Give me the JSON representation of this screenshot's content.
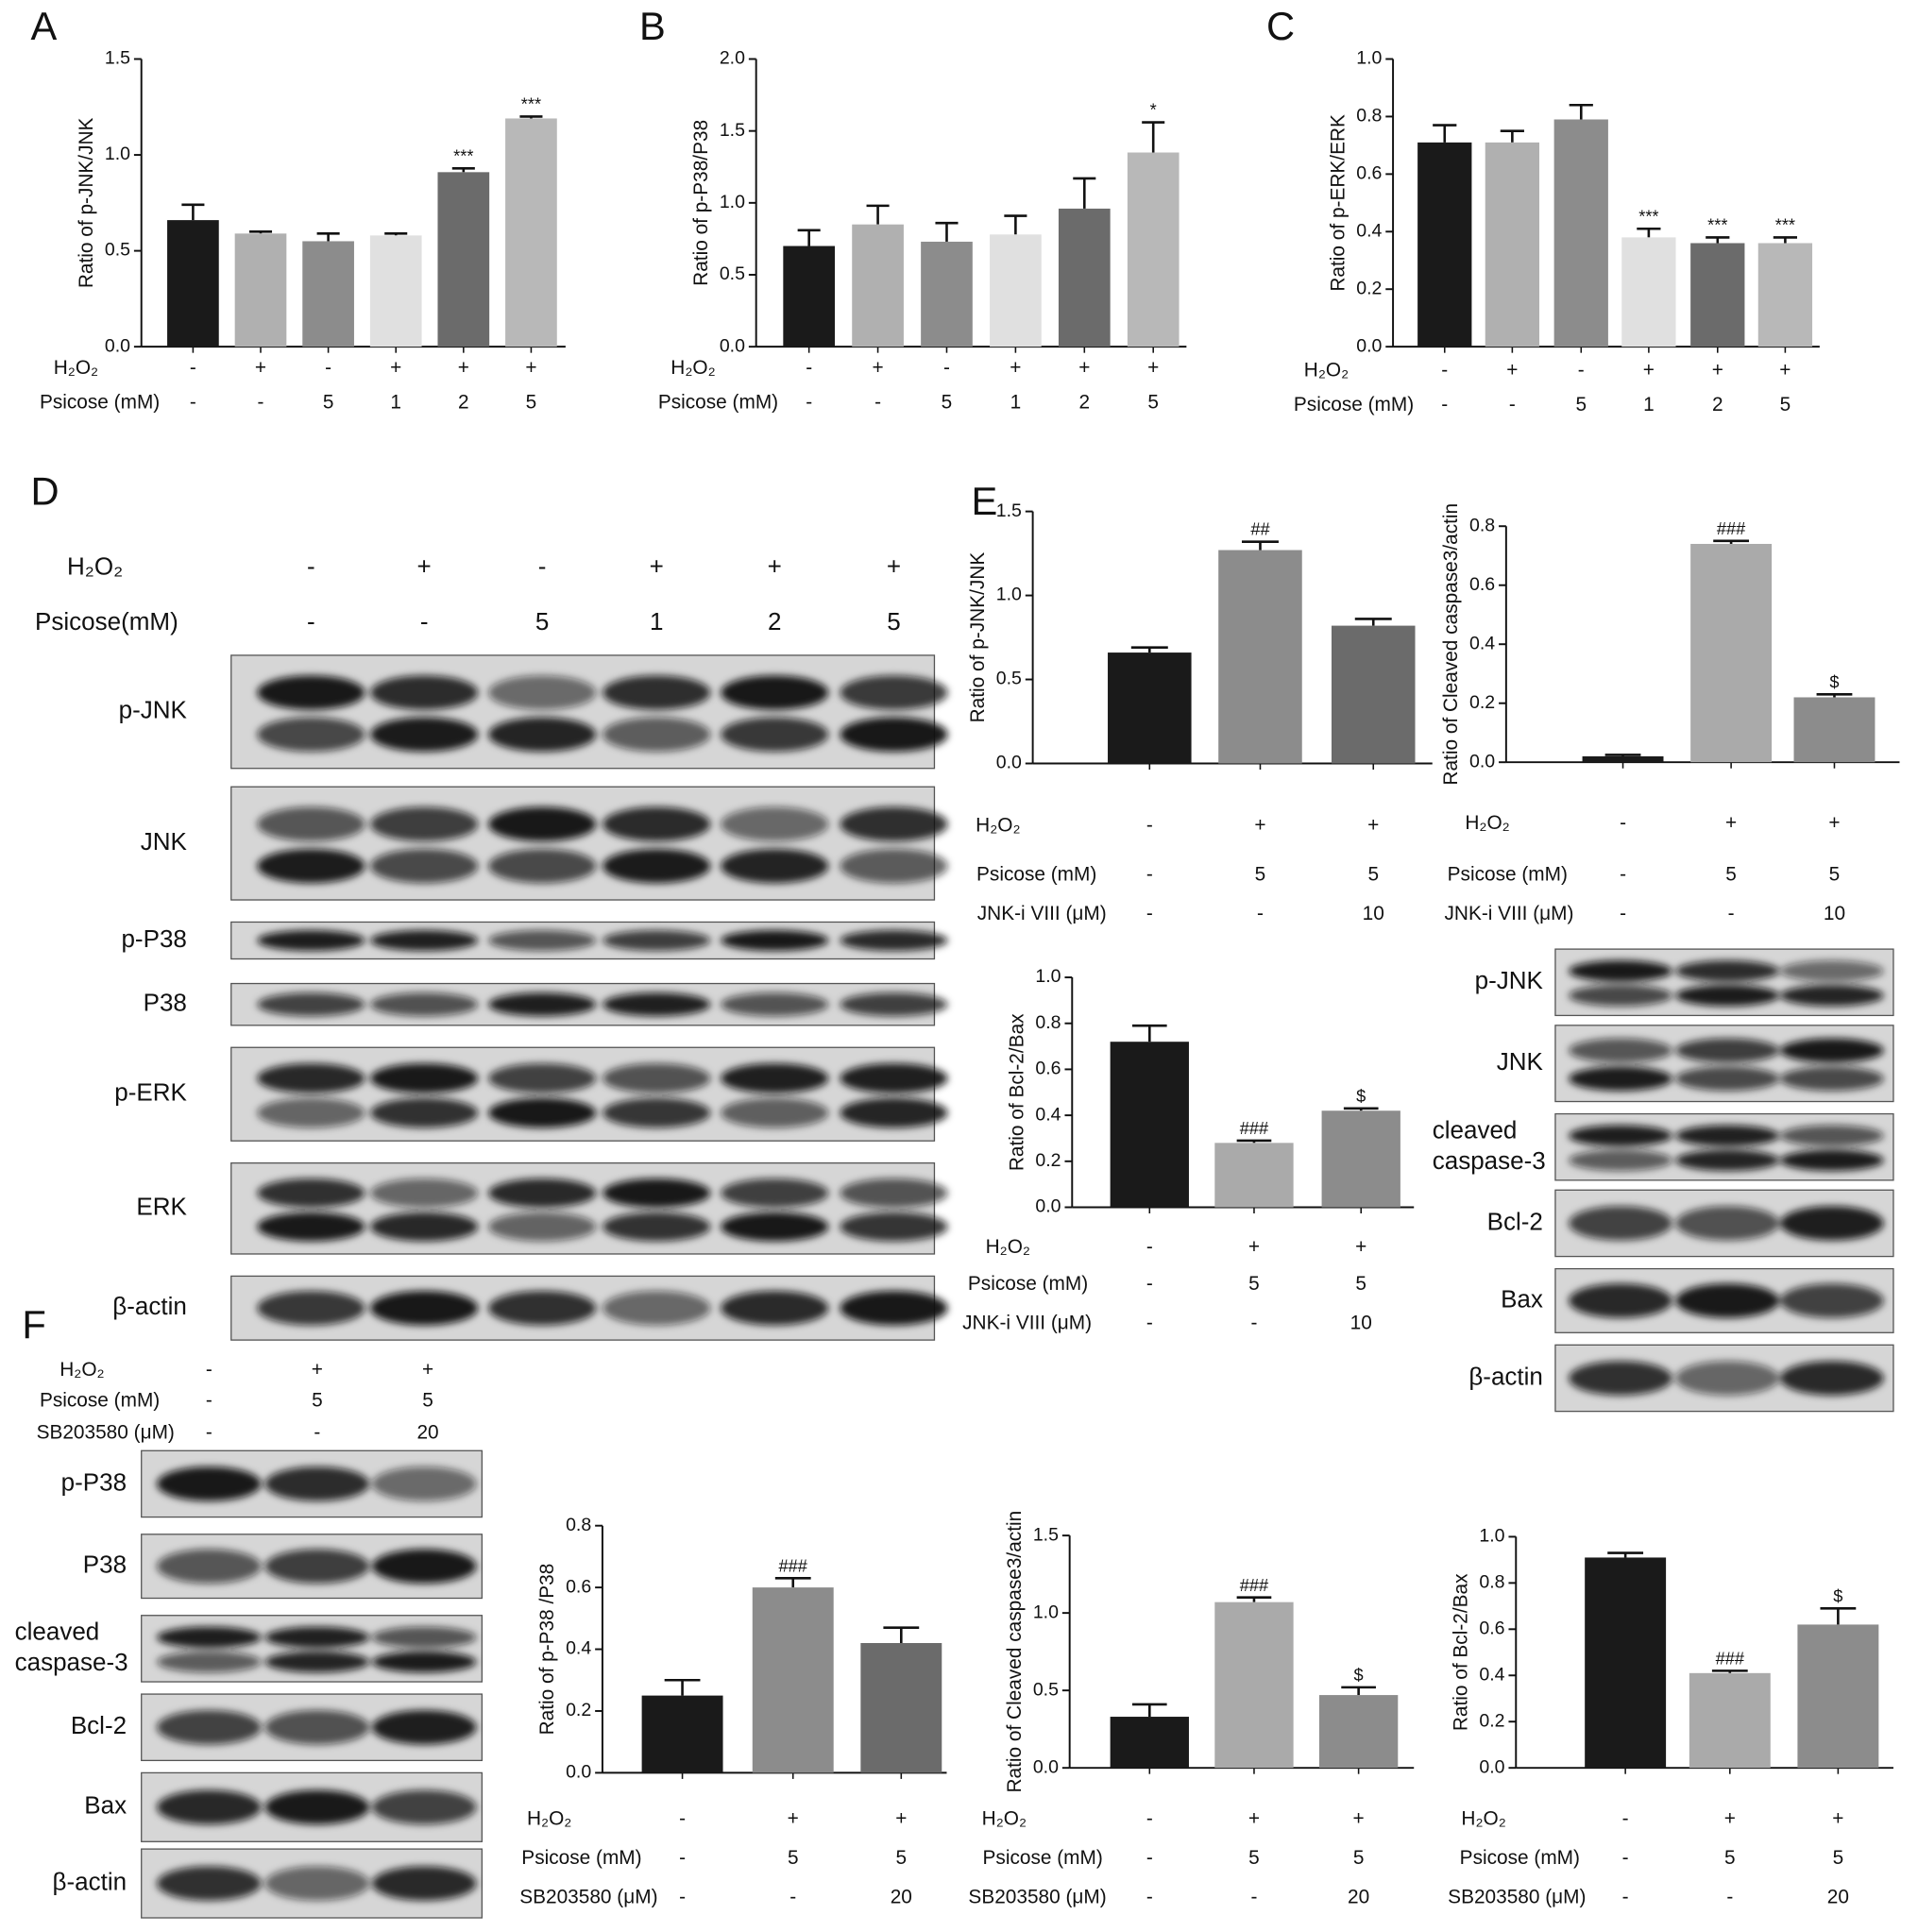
{
  "chart_data": [
    {
      "type": "bar",
      "panel": "A",
      "ylabel": "Ratio of p-JNK/JNK",
      "ylim": [
        0,
        1.5
      ],
      "yticks": [
        {
          "value": 0,
          "label": "0.0"
        },
        0.5,
        {
          "value": 1,
          "label": "1.0"
        },
        1.5
      ],
      "values": [
        0.66,
        0.59,
        0.55,
        0.58,
        0.91,
        1.19
      ],
      "errors": [
        0.08,
        0.01,
        0.04,
        0.01,
        0.02,
        0.01
      ],
      "annotations": [
        null,
        null,
        null,
        null,
        "***",
        "***"
      ],
      "colors": [
        "#1a1a1a",
        "#b0b0b0",
        "#8c8c8c",
        "#e0e0e0",
        "#6b6b6b",
        "#b8b8b8"
      ],
      "conditions": [
        {
          "name": "H₂O₂",
          "values": [
            "-",
            "+",
            "-",
            "+",
            "+",
            "+"
          ]
        },
        {
          "name": "Psicose (mM)",
          "values": [
            "-",
            "-",
            "5",
            "1",
            "2",
            "5"
          ]
        }
      ]
    },
    {
      "type": "bar",
      "panel": "B",
      "ylabel": "Ratio of p-P38/P38",
      "ylim": [
        0,
        2
      ],
      "yticks": [
        {
          "value": 0,
          "label": "0.0"
        },
        0.5,
        {
          "value": 1,
          "label": "1.0"
        },
        1.5,
        {
          "value": 2,
          "label": "2.0"
        }
      ],
      "values": [
        0.7,
        0.85,
        0.73,
        0.78,
        0.96,
        1.35
      ],
      "errors": [
        0.11,
        0.13,
        0.13,
        0.13,
        0.21,
        0.21
      ],
      "annotations": [
        null,
        null,
        null,
        null,
        null,
        "*"
      ],
      "colors": [
        "#1a1a1a",
        "#b0b0b0",
        "#8c8c8c",
        "#e0e0e0",
        "#6b6b6b",
        "#b8b8b8"
      ],
      "conditions": [
        {
          "name": "H₂O₂",
          "values": [
            "-",
            "+",
            "-",
            "+",
            "+",
            "+"
          ]
        },
        {
          "name": "Psicose (mM)",
          "values": [
            "-",
            "-",
            "5",
            "1",
            "2",
            "5"
          ]
        }
      ]
    },
    {
      "type": "bar",
      "panel": "C",
      "ylabel": "Ratio of p-ERK/ERK",
      "ylim": [
        0,
        1
      ],
      "yticks": [
        {
          "value": 0,
          "label": "0.0"
        },
        0.2,
        0.4,
        0.6,
        0.8,
        {
          "value": 1,
          "label": "1.0"
        }
      ],
      "values": [
        0.71,
        0.71,
        0.79,
        0.38,
        0.36,
        0.36
      ],
      "errors": [
        0.06,
        0.04,
        0.05,
        0.03,
        0.02,
        0.02
      ],
      "annotations": [
        null,
        null,
        null,
        "***",
        "***",
        "***"
      ],
      "colors": [
        "#1a1a1a",
        "#b0b0b0",
        "#8c8c8c",
        "#e0e0e0",
        "#6b6b6b",
        "#b8b8b8"
      ],
      "conditions": [
        {
          "name": "H₂O₂",
          "values": [
            "-",
            "+",
            "-",
            "+",
            "+",
            "+"
          ]
        },
        {
          "name": "Psicose (mM)",
          "values": [
            "-",
            "-",
            "5",
            "1",
            "2",
            "5"
          ]
        }
      ]
    },
    {
      "type": "bar",
      "panel": "E",
      "ylabel": "Ratio of p-JNK/JNK",
      "ylim": [
        0,
        1.5
      ],
      "yticks": [
        {
          "value": 0,
          "label": "0.0"
        },
        0.5,
        {
          "value": 1,
          "label": "1.0"
        },
        1.5
      ],
      "values": [
        0.66,
        1.27,
        0.82
      ],
      "errors": [
        0.03,
        0.05,
        0.04
      ],
      "annotations": [
        null,
        "##",
        null
      ],
      "colors": [
        "#1a1a1a",
        "#8c8c8c",
        "#6b6b6b"
      ],
      "conditions": [
        {
          "name": "H₂O₂",
          "values": [
            "-",
            "+",
            "+"
          ]
        },
        {
          "name": "Psicose (mM)",
          "values": [
            "-",
            "5",
            "5"
          ]
        },
        {
          "name": "JNK-i VIII (μM)",
          "values": [
            "-",
            "-",
            "10"
          ]
        }
      ]
    },
    {
      "type": "bar",
      "ylabel": "Ratio of Cleaved caspase3/actin",
      "ylim": [
        0,
        0.8
      ],
      "yticks": [
        {
          "value": 0,
          "label": "0.0"
        },
        0.2,
        0.4,
        0.6,
        0.8
      ],
      "values": [
        0.02,
        0.74,
        0.22
      ],
      "errors": [
        0.005,
        0.01,
        0.01
      ],
      "annotations": [
        null,
        "###",
        "$"
      ],
      "colors": [
        "#1a1a1a",
        "#aaaaaa",
        "#8c8c8c"
      ],
      "conditions": [
        {
          "name": "H₂O₂",
          "values": [
            "-",
            "+",
            "+"
          ]
        },
        {
          "name": "Psicose (mM)",
          "values": [
            "-",
            "5",
            "5"
          ]
        },
        {
          "name": "JNK-i VIII (μM)",
          "values": [
            "-",
            "-",
            "10"
          ]
        }
      ]
    },
    {
      "type": "bar",
      "ylabel": "Ratio of Bcl-2/Bax",
      "ylim": [
        0,
        1
      ],
      "yticks": [
        {
          "value": 0,
          "label": "0.0"
        },
        0.2,
        0.4,
        0.6,
        0.8,
        {
          "value": 1,
          "label": "1.0"
        }
      ],
      "values": [
        0.72,
        0.28,
        0.42
      ],
      "errors": [
        0.07,
        0.01,
        0.01
      ],
      "annotations": [
        null,
        "###",
        "$"
      ],
      "colors": [
        "#1a1a1a",
        "#aaaaaa",
        "#8c8c8c"
      ],
      "conditions": [
        {
          "name": "H₂O₂",
          "values": [
            "-",
            "+",
            "+"
          ]
        },
        {
          "name": "Psicose (mM)",
          "values": [
            "-",
            "5",
            "5"
          ]
        },
        {
          "name": "JNK-i VIII (μM)",
          "values": [
            "-",
            "-",
            "10"
          ]
        }
      ]
    },
    {
      "type": "bar",
      "ylabel": "Ratio of p-P38 /P38",
      "ylim": [
        0,
        0.8
      ],
      "yticks": [
        {
          "value": 0,
          "label": "0.0"
        },
        0.2,
        0.4,
        0.6,
        0.8
      ],
      "values": [
        0.25,
        0.6,
        0.42
      ],
      "errors": [
        0.05,
        0.03,
        0.05
      ],
      "annotations": [
        null,
        "###",
        null
      ],
      "colors": [
        "#1a1a1a",
        "#8c8c8c",
        "#6b6b6b"
      ],
      "conditions": [
        {
          "name": "H₂O₂",
          "values": [
            "-",
            "+",
            "+"
          ]
        },
        {
          "name": "Psicose (mM)",
          "values": [
            "-",
            "5",
            "5"
          ]
        },
        {
          "name": "SB203580 (μM)",
          "values": [
            "-",
            "-",
            "20"
          ]
        }
      ]
    },
    {
      "type": "bar",
      "ylabel": "Ratio of Cleaved caspase3/actin",
      "ylim": [
        0,
        1.5
      ],
      "yticks": [
        {
          "value": 0,
          "label": "0.0"
        },
        0.5,
        {
          "value": 1,
          "label": "1.0"
        },
        1.5
      ],
      "values": [
        0.33,
        1.07,
        0.47
      ],
      "errors": [
        0.08,
        0.03,
        0.05
      ],
      "annotations": [
        null,
        "###",
        "$"
      ],
      "colors": [
        "#1a1a1a",
        "#aaaaaa",
        "#8c8c8c"
      ],
      "conditions": [
        {
          "name": "H₂O₂",
          "values": [
            "-",
            "+",
            "+"
          ]
        },
        {
          "name": "Psicose (mM)",
          "values": [
            "-",
            "5",
            "5"
          ]
        },
        {
          "name": "SB203580 (μM)",
          "values": [
            "-",
            "-",
            "20"
          ]
        }
      ]
    },
    {
      "type": "bar",
      "ylabel": "Ratio of Bcl-2/Bax",
      "ylim": [
        0,
        1
      ],
      "yticks": [
        {
          "value": 0,
          "label": "0.0"
        },
        0.2,
        0.4,
        0.6,
        0.8,
        {
          "value": 1,
          "label": "1.0"
        }
      ],
      "values": [
        0.91,
        0.41,
        0.62
      ],
      "errors": [
        0.02,
        0.01,
        0.07
      ],
      "annotations": [
        null,
        "###",
        "$"
      ],
      "colors": [
        "#1a1a1a",
        "#aaaaaa",
        "#8c8c8c"
      ],
      "conditions": [
        {
          "name": "H₂O₂",
          "values": [
            "-",
            "+",
            "+"
          ]
        },
        {
          "name": "Psicose (mM)",
          "values": [
            "-",
            "5",
            "5"
          ]
        },
        {
          "name": "SB203580 (μM)",
          "values": [
            "-",
            "-",
            "20"
          ]
        }
      ]
    }
  ],
  "blots": [
    {
      "panel": "D",
      "conditions": [
        {
          "name": "H₂O₂",
          "values": [
            "-",
            "+",
            "-",
            "+",
            "+",
            "+"
          ]
        },
        {
          "name": "Psicose(mM)",
          "values": [
            "-",
            "-",
            "5",
            "1",
            "2",
            "5"
          ]
        }
      ],
      "rows": [
        [
          "p-JNK"
        ],
        [
          "JNK"
        ],
        [
          "p-P38"
        ],
        [
          "P38"
        ],
        [
          "p-ERK"
        ],
        [
          "ERK"
        ],
        [
          "β-actin"
        ]
      ]
    },
    {
      "rows": [
        [
          "p-JNK"
        ],
        [
          "JNK"
        ],
        [
          "cleaved",
          "caspase-3"
        ],
        [
          "Bcl-2"
        ],
        [
          "Bax"
        ],
        [
          "β-actin"
        ]
      ]
    },
    {
      "panel": "F",
      "conditions": [
        {
          "name": "H₂O₂",
          "values": [
            "-",
            "+",
            "+"
          ]
        },
        {
          "name": "Psicose (mM)",
          "values": [
            "-",
            "5",
            "5"
          ]
        },
        {
          "name": "SB203580 (μM)",
          "values": [
            "-",
            "-",
            "20"
          ]
        }
      ],
      "rows": [
        [
          "p-P38"
        ],
        [
          "P38"
        ],
        [
          "cleaved",
          "caspase-3"
        ],
        [
          "Bcl-2"
        ],
        [
          "Bax"
        ],
        [
          "β-actin"
        ]
      ]
    }
  ]
}
